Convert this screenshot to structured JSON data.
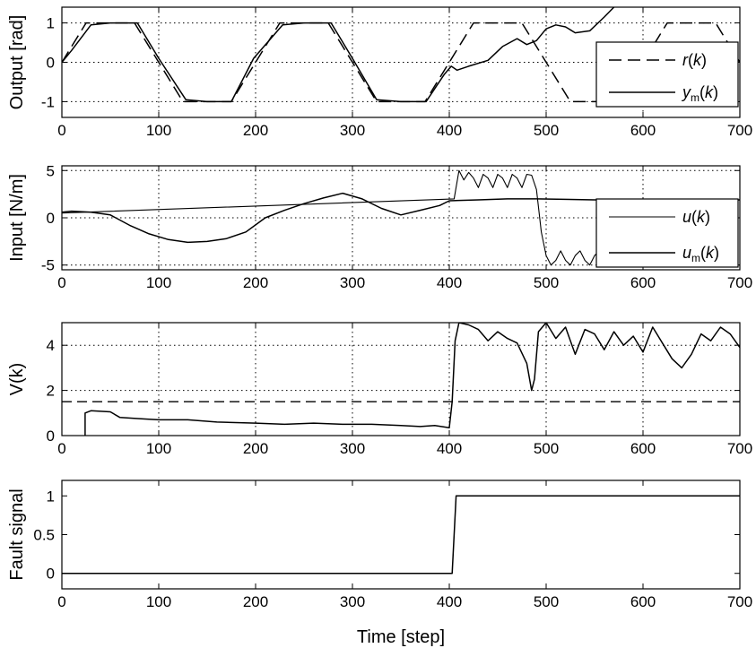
{
  "chart_data": [
    {
      "type": "line",
      "ylabel": "Output [rad]",
      "xlabel": "",
      "xlim": [
        0,
        700
      ],
      "ylim": [
        -1.4,
        1.4
      ],
      "xticks": [
        0,
        100,
        200,
        300,
        400,
        500,
        600,
        700
      ],
      "yticks": [
        -1,
        0,
        1
      ],
      "grid": true,
      "legend_position": "lower-right",
      "series": [
        {
          "name": "r(k)",
          "label_main": "r",
          "label_sub": "",
          "style": "dashed",
          "x": [
            0,
            25,
            75,
            125,
            175,
            225,
            275,
            325,
            375,
            400,
            425,
            475,
            525,
            575,
            625,
            675,
            700
          ],
          "y": [
            0,
            1,
            1,
            -1,
            -1,
            1,
            1,
            -1,
            -1,
            0,
            1,
            1,
            -1,
            -1,
            1,
            1,
            0
          ]
        },
        {
          "name": "ym(k)",
          "label_main": "y",
          "label_sub": "m",
          "style": "solid",
          "x": [
            0,
            10,
            30,
            50,
            78,
            100,
            128,
            150,
            175,
            198,
            228,
            250,
            278,
            300,
            325,
            350,
            376,
            395,
            402,
            408,
            420,
            440,
            455,
            470,
            480,
            490,
            500,
            510,
            520,
            530,
            545,
            560,
            570
          ],
          "y": [
            0,
            0.3,
            0.95,
            1.0,
            1.0,
            0.1,
            -0.95,
            -1.0,
            -1.0,
            0.1,
            0.95,
            1.0,
            1.0,
            0.1,
            -0.95,
            -1.0,
            -1.0,
            -0.3,
            -0.1,
            -0.2,
            -0.1,
            0.05,
            0.4,
            0.6,
            0.45,
            0.55,
            0.85,
            0.95,
            0.9,
            0.75,
            0.8,
            1.15,
            1.4
          ]
        }
      ]
    },
    {
      "type": "line",
      "ylabel": "Input [N/m]",
      "xlabel": "",
      "xlim": [
        0,
        700
      ],
      "ylim": [
        -5.5,
        5.5
      ],
      "xticks": [
        0,
        100,
        200,
        300,
        400,
        500,
        600,
        700
      ],
      "yticks": [
        -5,
        0,
        5
      ],
      "grid": true,
      "legend_position": "lower-right",
      "series": [
        {
          "name": "u(k)",
          "label_main": "u",
          "label_sub": "",
          "style": "thin",
          "x": [
            0,
            405,
            410,
            415,
            420,
            425,
            430,
            435,
            440,
            445,
            450,
            455,
            460,
            465,
            470,
            475,
            480,
            485,
            490,
            495,
            500,
            505,
            510,
            515,
            520,
            525,
            530,
            535,
            540,
            545,
            550,
            555,
            560
          ],
          "y": [
            0.5,
            2.0,
            5.0,
            4.0,
            4.8,
            4.2,
            3.2,
            4.6,
            4.2,
            3.2,
            4.6,
            4.2,
            3.2,
            4.6,
            4.2,
            3.2,
            4.6,
            4.5,
            3.0,
            -1.5,
            -4.0,
            -5.0,
            -4.5,
            -3.5,
            -4.5,
            -5.0,
            -4.0,
            -3.5,
            -4.5,
            -5.0,
            -4.0,
            -3.5,
            -4.5
          ]
        },
        {
          "name": "um(k)",
          "label_main": "u",
          "label_sub": "m",
          "style": "solid",
          "x": [
            0,
            10,
            30,
            50,
            70,
            90,
            110,
            130,
            150,
            170,
            190,
            210,
            230,
            250,
            270,
            290,
            310,
            330,
            350,
            370,
            390,
            400,
            430,
            460,
            490,
            550,
            600,
            650,
            700
          ],
          "y": [
            0.6,
            0.7,
            0.6,
            0.3,
            -0.8,
            -1.7,
            -2.3,
            -2.6,
            -2.5,
            -2.2,
            -1.5,
            0.0,
            0.8,
            1.5,
            2.1,
            2.6,
            2.0,
            1.0,
            0.3,
            0.8,
            1.3,
            1.8,
            1.9,
            2.0,
            2.0,
            1.9,
            1.9,
            1.8,
            1.9
          ]
        }
      ]
    },
    {
      "type": "line",
      "ylabel": "V(k)",
      "xlabel": "",
      "xlim": [
        0,
        700
      ],
      "ylim": [
        0,
        5
      ],
      "xticks": [
        0,
        100,
        200,
        300,
        400,
        500,
        600,
        700
      ],
      "yticks": [
        0,
        2,
        4
      ],
      "grid": true,
      "threshold": 1.5,
      "series": [
        {
          "name": "V(k)",
          "style": "solid",
          "x": [
            24,
            24,
            30,
            50,
            60,
            80,
            100,
            130,
            160,
            200,
            230,
            260,
            290,
            320,
            350,
            370,
            385,
            400,
            403,
            406,
            410,
            420,
            430,
            440,
            450,
            460,
            470,
            480,
            485,
            488,
            492,
            500,
            510,
            520,
            530,
            540,
            550,
            560,
            570,
            580,
            590,
            600,
            610,
            620,
            630,
            640,
            650,
            660,
            670,
            680,
            690,
            700
          ],
          "y": [
            0,
            1.0,
            1.1,
            1.05,
            0.8,
            0.75,
            0.7,
            0.7,
            0.6,
            0.55,
            0.5,
            0.55,
            0.5,
            0.5,
            0.45,
            0.4,
            0.45,
            0.35,
            1.5,
            4.2,
            5.0,
            4.9,
            4.7,
            4.2,
            4.6,
            4.3,
            4.1,
            3.2,
            2.0,
            2.5,
            4.6,
            5.0,
            4.3,
            4.8,
            3.6,
            4.7,
            4.5,
            3.8,
            4.6,
            4.0,
            4.4,
            3.7,
            4.8,
            4.1,
            3.4,
            3.0,
            3.6,
            4.5,
            4.2,
            4.8,
            4.5,
            3.9
          ]
        }
      ]
    },
    {
      "type": "line",
      "ylabel": "Fault signal",
      "xlabel": "Time [step]",
      "xlim": [
        0,
        700
      ],
      "ylim": [
        -0.2,
        1.2
      ],
      "xticks": [
        0,
        100,
        200,
        300,
        400,
        500,
        600,
        700
      ],
      "yticks": [
        0,
        0.5,
        1
      ],
      "grid": false,
      "series": [
        {
          "name": "fault",
          "style": "solid",
          "x": [
            0,
            403,
            407,
            700
          ],
          "y": [
            0,
            0,
            1,
            1
          ]
        }
      ]
    }
  ]
}
